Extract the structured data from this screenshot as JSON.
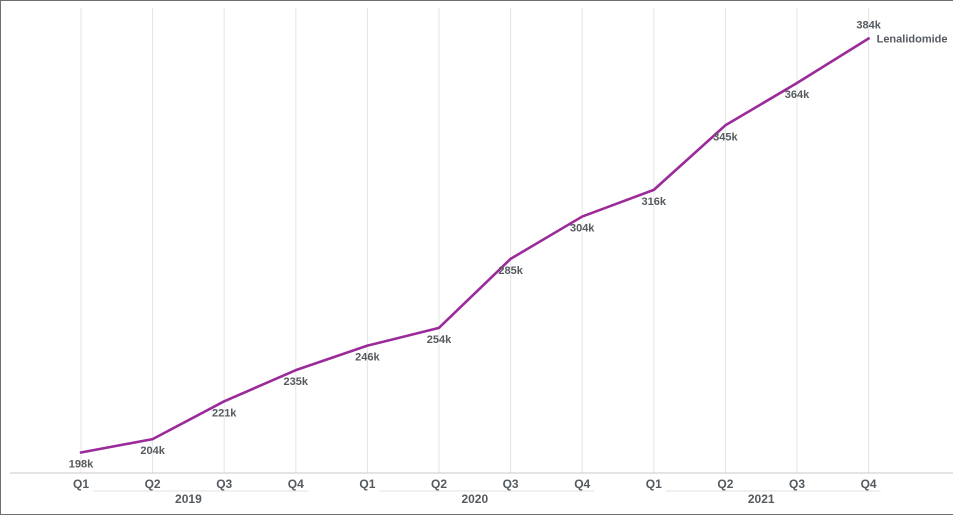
{
  "chart_data": {
    "type": "line",
    "title": "",
    "xlabel": "",
    "ylabel": "",
    "categories": [
      "Q1",
      "Q2",
      "Q3",
      "Q4",
      "Q1",
      "Q2",
      "Q3",
      "Q4",
      "Q1",
      "Q2",
      "Q3",
      "Q4"
    ],
    "years": [
      {
        "label": "2019",
        "quarters": 4
      },
      {
        "label": "2020",
        "quarters": 4
      },
      {
        "label": "2021",
        "quarters": 4
      }
    ],
    "series": [
      {
        "name": "Lenalidomide",
        "color": "#9b2a9a",
        "values": [
          198,
          204,
          221,
          235,
          246,
          254,
          285,
          304,
          316,
          345,
          364,
          384
        ],
        "value_labels": [
          "198k",
          "204k",
          "221k",
          "235k",
          "246k",
          "254k",
          "285k",
          "304k",
          "316k",
          "345k",
          "364k",
          "384k"
        ]
      }
    ],
    "ylim": [
      192,
      388
    ],
    "grid": "vertical",
    "legend": "none"
  }
}
